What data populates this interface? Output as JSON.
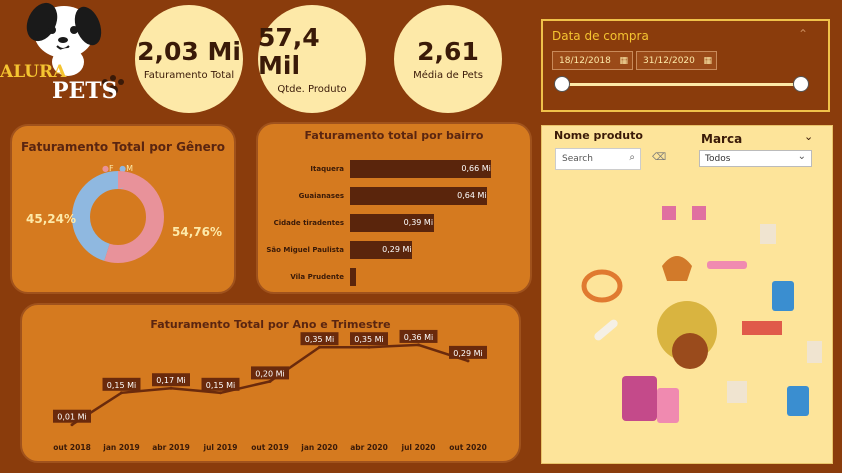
{
  "brand": {
    "line1": "ALURA",
    "line2": "PETS"
  },
  "kpis": [
    {
      "value": "2,03 Mi",
      "label": "Faturamento Total"
    },
    {
      "value": "57,4 Mil",
      "label": "Qtde. Produto"
    },
    {
      "value": "2,61",
      "label": "Média de Pets"
    }
  ],
  "date_filter": {
    "title": "Data de compra",
    "start": "18/12/2018",
    "end": "31/12/2020"
  },
  "gender_panel": {
    "title": "Faturamento Total por Gênero",
    "legend": [
      "F",
      "M"
    ],
    "pct_m": "45,24%",
    "pct_f": "54,76%"
  },
  "bairro_panel": {
    "title": "Faturamento total por bairro"
  },
  "trend_panel": {
    "title": "Faturamento Total por Ano e Trimestre"
  },
  "slicer": {
    "produto_label": "Nome produto",
    "search_placeholder": "Search",
    "marca_label": "Marca",
    "marca_value": "Todos"
  },
  "chart_data": [
    {
      "type": "pie",
      "title": "Faturamento Total por Gênero",
      "categories": [
        "F",
        "M"
      ],
      "values": [
        54.76,
        45.24
      ],
      "colors": {
        "F": "#e8929a",
        "M": "#8fb8e0"
      },
      "legend": "top"
    },
    {
      "type": "bar",
      "orientation": "horizontal",
      "title": "Faturamento total por bairro",
      "categories": [
        "Itaquera",
        "Guaianases",
        "Cidade tiradentes",
        "São Miguel Paulista",
        "Vila Prudente"
      ],
      "values": [
        0.66,
        0.64,
        0.39,
        0.29,
        0.03
      ],
      "labels": [
        "0,66 Mi",
        "0,64 Mi",
        "0,39 Mi",
        "0,29 Mi",
        ""
      ],
      "unit": "Mi"
    },
    {
      "type": "line",
      "title": "Faturamento Total por Ano e Trimestre",
      "categories": [
        "out 2018",
        "jan 2019",
        "abr 2019",
        "jul 2019",
        "out 2019",
        "jan 2020",
        "abr 2020",
        "jul 2020",
        "out 2020"
      ],
      "values": [
        0.01,
        0.15,
        0.17,
        0.15,
        0.2,
        0.35,
        0.35,
        0.36,
        0.29
      ],
      "labels": [
        "0,01 Mi",
        "0,15 Mi",
        "0,17 Mi",
        "0,15 Mi",
        "0,20 Mi",
        "0,35 Mi",
        "0,35 Mi",
        "0,36 Mi",
        "0,29 Mi"
      ],
      "unit": "Mi"
    }
  ]
}
